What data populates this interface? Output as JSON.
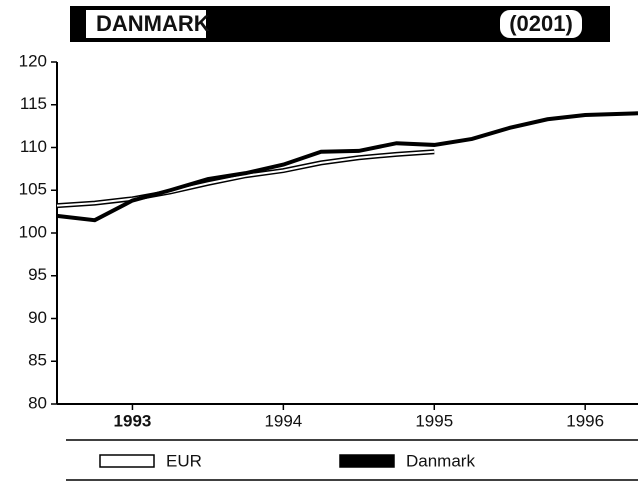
{
  "chart_data": {
    "type": "line",
    "title": "DANMARK",
    "code": "(0201)",
    "xlim": [
      1993,
      1996.85
    ],
    "xticks": [
      {
        "value": 1993.5,
        "label": "1993"
      },
      {
        "value": 1994.5,
        "label": "1994"
      },
      {
        "value": 1995.5,
        "label": "1995"
      },
      {
        "value": 1996.5,
        "label": "1996"
      }
    ],
    "ylim": [
      80,
      120
    ],
    "yticks": [
      80,
      85,
      90,
      95,
      100,
      105,
      110,
      115,
      120
    ],
    "series": [
      {
        "name": "EUR",
        "color": "#ffffff",
        "x": [
          1993,
          1993.25,
          1993.5,
          1993.75,
          1994,
          1994.25,
          1994.5,
          1994.75,
          1995,
          1995.25,
          1995.5
        ],
        "values": [
          103.2,
          103.5,
          104,
          104.8,
          105.8,
          106.7,
          107.3,
          108.2,
          108.8,
          109.2,
          109.5
        ]
      },
      {
        "name": "Danmark",
        "color": "#000000",
        "x": [
          1993,
          1993.25,
          1993.5,
          1993.75,
          1994,
          1994.25,
          1994.5,
          1994.75,
          1995,
          1995.25,
          1995.5,
          1995.75,
          1996,
          1996.25,
          1996.5,
          1996.85
        ],
        "values": [
          102,
          101.5,
          103.8,
          105,
          106.3,
          107,
          108,
          109.5,
          109.6,
          110.5,
          110.3,
          111,
          112.3,
          113.3,
          113.8,
          114
        ]
      }
    ]
  }
}
